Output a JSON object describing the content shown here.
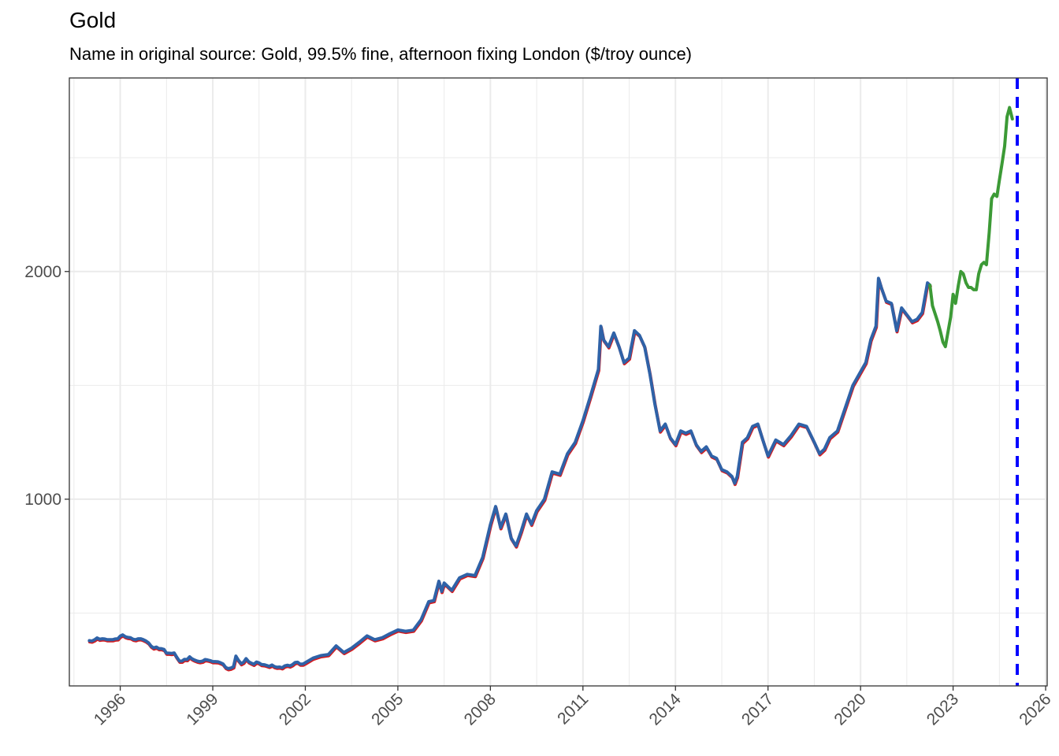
{
  "chart_data": {
    "type": "line",
    "title": "Gold",
    "subtitle": "Name in original source: Gold, 99.5% fine, afternoon fixing London ($/troy ounce)",
    "xlabel": "",
    "ylabel": "",
    "xlim": [
      1994.35,
      2026.05
    ],
    "ylim": [
      180,
      2850
    ],
    "x_ticks": [
      1996,
      1999,
      2002,
      2005,
      2008,
      2011,
      2014,
      2017,
      2020,
      2023,
      2026
    ],
    "y_ticks": [
      1000,
      2000
    ],
    "grid": true,
    "legend": "none",
    "colors": {
      "actual": "#2f62a7",
      "revised": "#d7191c",
      "forecast": "#3c9a36",
      "vline": "#0000ff",
      "grid": "#ebebeb",
      "axis_text": "#4d4d4d"
    },
    "vline_x": 2025.08,
    "series": [
      {
        "x": [
          1995.0,
          1995.08,
          1995.17,
          1995.25,
          1995.33,
          1995.42,
          1995.5,
          1995.58,
          1995.67,
          1995.75,
          1995.83,
          1995.92,
          1996.0,
          1996.08,
          1996.17,
          1996.25,
          1996.33,
          1996.42,
          1996.5,
          1996.58,
          1996.67,
          1996.75,
          1996.83,
          1996.92,
          1997.0,
          1997.08,
          1997.17,
          1997.25,
          1997.33,
          1997.42,
          1997.5,
          1997.58,
          1997.67,
          1997.75,
          1997.83,
          1997.92,
          1998.0,
          1998.08,
          1998.17,
          1998.25,
          1998.33,
          1998.42,
          1998.5,
          1998.58,
          1998.67,
          1998.75,
          1998.83,
          1998.92,
          1999.0,
          1999.08,
          1999.17,
          1999.25,
          1999.33,
          1999.42,
          1999.5,
          1999.58,
          1999.67,
          1999.75,
          1999.83,
          1999.92,
          2000.0,
          2000.08,
          2000.17,
          2000.25,
          2000.33,
          2000.42,
          2000.5,
          2000.58,
          2000.67,
          2000.75,
          2000.83,
          2000.92,
          2001.0,
          2001.08,
          2001.17,
          2001.25,
          2001.33,
          2001.42,
          2001.5,
          2001.58,
          2001.67,
          2001.75,
          2001.83,
          2001.92,
          2002.0,
          2002.25,
          2002.5,
          2002.75,
          2003.0,
          2003.25,
          2003.5,
          2003.75,
          2004.0,
          2004.25,
          2004.5,
          2004.75,
          2005.0,
          2005.25,
          2005.5,
          2005.75,
          2006.0,
          2006.17,
          2006.33,
          2006.42,
          2006.5,
          2006.75,
          2007.0,
          2007.25,
          2007.5,
          2007.75,
          2008.0,
          2008.17,
          2008.33,
          2008.5,
          2008.67,
          2008.83,
          2009.0,
          2009.17,
          2009.33,
          2009.5,
          2009.75,
          2010.0,
          2010.25,
          2010.5,
          2010.75,
          2011.0,
          2011.25,
          2011.5,
          2011.58,
          2011.67,
          2011.83,
          2012.0,
          2012.17,
          2012.33,
          2012.5,
          2012.67,
          2012.83,
          2013.0,
          2013.17,
          2013.33,
          2013.5,
          2013.67,
          2013.83,
          2014.0,
          2014.17,
          2014.33,
          2014.5,
          2014.67,
          2014.83,
          2015.0,
          2015.17,
          2015.33,
          2015.5,
          2015.67,
          2015.83,
          2015.92,
          2016.0,
          2016.17,
          2016.33,
          2016.5,
          2016.67,
          2016.83,
          2017.0,
          2017.25,
          2017.5,
          2017.75,
          2018.0,
          2018.25,
          2018.5,
          2018.67,
          2018.83,
          2019.0,
          2019.25,
          2019.5,
          2019.75,
          2020.0,
          2020.17,
          2020.33,
          2020.5,
          2020.58,
          2020.67,
          2020.83,
          2021.0,
          2021.17,
          2021.33,
          2021.5,
          2021.67,
          2021.83,
          2022.0,
          2022.17,
          2022.25
        ],
        "y": [
          379,
          377,
          383,
          391,
          385,
          387,
          386,
          383,
          383,
          383,
          386,
          387,
          399,
          404,
          396,
          393,
          392,
          385,
          383,
          387,
          387,
          383,
          378,
          369,
          355,
          347,
          351,
          344,
          344,
          340,
          324,
          324,
          323,
          325,
          307,
          289,
          289,
          297,
          296,
          308,
          299,
          293,
          289,
          287,
          289,
          296,
          294,
          291,
          287,
          287,
          286,
          282,
          277,
          261,
          256,
          258,
          264,
          311,
          293,
          278,
          284,
          300,
          286,
          280,
          275,
          285,
          281,
          274,
          273,
          270,
          266,
          272,
          265,
          262,
          263,
          260,
          268,
          271,
          268,
          273,
          283,
          284,
          276,
          276,
          282,
          302,
          313,
          318,
          356,
          327,
          346,
          372,
          400,
          383,
          392,
          410,
          426,
          420,
          425,
          470,
          550,
          555,
          640,
          595,
          632,
          600,
          655,
          670,
          665,
          745,
          889,
          968,
          875,
          935,
          830,
          795,
          860,
          935,
          890,
          950,
          1000,
          1120,
          1110,
          1200,
          1250,
          1345,
          1455,
          1570,
          1760,
          1700,
          1670,
          1730,
          1670,
          1600,
          1620,
          1740,
          1720,
          1670,
          1550,
          1420,
          1300,
          1330,
          1270,
          1240,
          1300,
          1290,
          1300,
          1240,
          1210,
          1230,
          1190,
          1180,
          1130,
          1120,
          1100,
          1070,
          1100,
          1250,
          1270,
          1320,
          1330,
          1260,
          1190,
          1260,
          1240,
          1280,
          1330,
          1320,
          1250,
          1200,
          1220,
          1270,
          1300,
          1400,
          1500,
          1560,
          1600,
          1700,
          1760,
          1970,
          1930,
          1870,
          1860,
          1740,
          1840,
          1810,
          1780,
          1790,
          1820,
          1950,
          1940
        ]
      },
      {
        "x": [
          2022.25,
          2022.33,
          2022.5,
          2022.58,
          2022.67,
          2022.75,
          2022.83,
          2022.92,
          2023.0,
          2023.08,
          2023.17,
          2023.25,
          2023.33,
          2023.42,
          2023.5,
          2023.58,
          2023.67,
          2023.75,
          2023.83,
          2023.92,
          2024.0,
          2024.08,
          2024.17,
          2024.25,
          2024.33,
          2024.42,
          2024.5,
          2024.58,
          2024.67,
          2024.75,
          2024.83,
          2024.92
        ],
        "y": [
          1940,
          1850,
          1780,
          1740,
          1690,
          1670,
          1730,
          1800,
          1900,
          1860,
          1940,
          2000,
          1990,
          1950,
          1930,
          1930,
          1920,
          1920,
          1990,
          2030,
          2040,
          2030,
          2170,
          2320,
          2340,
          2330,
          2400,
          2470,
          2550,
          2680,
          2720,
          2670
        ]
      }
    ]
  }
}
